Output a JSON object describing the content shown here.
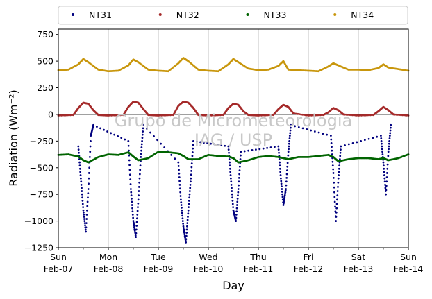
{
  "chart_data": {
    "type": "scatter",
    "title": "",
    "xlabel": "Day",
    "ylabel": "Radiation (Wm⁻²)",
    "ylim": [
      -1250,
      800
    ],
    "xlim": [
      0,
      7
    ],
    "yticks": [
      -1250,
      -1000,
      -750,
      -500,
      -250,
      0,
      250,
      500,
      750
    ],
    "ytick_labels": [
      "−1250",
      "−1000",
      "−750",
      "−500",
      "−250",
      "0",
      "250",
      "500",
      "750"
    ],
    "xticks": [
      {
        "pos": 0,
        "day": "Sun",
        "date": "Feb-07"
      },
      {
        "pos": 1,
        "day": "Mon",
        "date": "Feb-08"
      },
      {
        "pos": 2,
        "day": "Tue",
        "date": "Feb-09"
      },
      {
        "pos": 3,
        "day": "Wed",
        "date": "Feb-10"
      },
      {
        "pos": 4,
        "day": "Thu",
        "date": "Feb-11"
      },
      {
        "pos": 5,
        "day": "Fri",
        "date": "Feb-12"
      },
      {
        "pos": 6,
        "day": "Sat",
        "date": "Feb-13"
      },
      {
        "pos": 7,
        "day": "Sun",
        "date": "Feb-14"
      }
    ],
    "grid": "vertical",
    "legend_position": "top",
    "watermark": [
      "Grupo de Micrometeorologia",
      "IAG / USP"
    ],
    "series": [
      {
        "name": "NT31",
        "color": "#00007f",
        "x": [
          0.4,
          0.45,
          0.5,
          0.55,
          0.6,
          0.65,
          0.7,
          1.4,
          1.45,
          1.5,
          1.55,
          1.6,
          1.65,
          1.7,
          2.4,
          2.45,
          2.5,
          2.55,
          2.6,
          2.65,
          2.7,
          3.4,
          3.45,
          3.5,
          3.55,
          3.6,
          3.65,
          4.4,
          4.45,
          4.5,
          4.55,
          4.6,
          4.65,
          5.45,
          5.5,
          5.55,
          5.6,
          5.65,
          6.45,
          6.5,
          6.55,
          6.6,
          6.65
        ],
        "y": [
          -300,
          -600,
          -900,
          -1100,
          -700,
          -200,
          -100,
          -250,
          -700,
          -1000,
          -1150,
          -800,
          -400,
          -100,
          -450,
          -800,
          -1050,
          -1200,
          -900,
          -600,
          -250,
          -300,
          -600,
          -900,
          -1000,
          -700,
          -350,
          -300,
          -600,
          -850,
          -700,
          -350,
          -100,
          -200,
          -550,
          -1000,
          -600,
          -300,
          -200,
          -450,
          -750,
          -350,
          -100
        ]
      },
      {
        "name": "NT32",
        "color": "#a52a2a",
        "x": [
          0,
          0.3,
          0.4,
          0.5,
          0.6,
          0.7,
          0.8,
          1.0,
          1.3,
          1.4,
          1.5,
          1.6,
          1.7,
          1.8,
          2.0,
          2.3,
          2.4,
          2.5,
          2.6,
          2.7,
          2.8,
          3.0,
          3.3,
          3.4,
          3.5,
          3.6,
          3.7,
          3.8,
          4.0,
          4.3,
          4.4,
          4.5,
          4.6,
          4.7,
          5.0,
          5.3,
          5.4,
          5.5,
          5.6,
          5.7,
          6.0,
          6.3,
          6.4,
          6.5,
          6.6,
          6.7,
          7.0
        ],
        "y": [
          -10,
          -5,
          60,
          110,
          100,
          40,
          -5,
          -10,
          -5,
          70,
          120,
          110,
          50,
          -5,
          -10,
          -5,
          80,
          120,
          110,
          60,
          -5,
          -10,
          -5,
          60,
          100,
          90,
          30,
          -5,
          -10,
          -5,
          50,
          90,
          70,
          10,
          -10,
          -5,
          20,
          60,
          40,
          0,
          -10,
          -5,
          30,
          70,
          40,
          0,
          -10
        ]
      },
      {
        "name": "NT33",
        "color": "#006400",
        "x": [
          0,
          0.2,
          0.4,
          0.5,
          0.6,
          0.8,
          1.0,
          1.2,
          1.4,
          1.5,
          1.6,
          1.8,
          2.0,
          2.2,
          2.4,
          2.5,
          2.6,
          2.8,
          3.0,
          3.2,
          3.4,
          3.5,
          3.6,
          3.8,
          4.0,
          4.2,
          4.4,
          4.5,
          4.6,
          4.8,
          5.0,
          5.2,
          5.4,
          5.5,
          5.6,
          5.8,
          6.0,
          6.2,
          6.4,
          6.5,
          6.6,
          6.8,
          7.0
        ],
        "y": [
          -380,
          -375,
          -395,
          -430,
          -450,
          -400,
          -375,
          -380,
          -355,
          -395,
          -430,
          -410,
          -350,
          -355,
          -365,
          -390,
          -420,
          -420,
          -380,
          -390,
          -395,
          -410,
          -450,
          -430,
          -400,
          -390,
          -400,
          -410,
          -420,
          -400,
          -400,
          -390,
          -380,
          -400,
          -440,
          -420,
          -410,
          -410,
          -420,
          -410,
          -430,
          -410,
          -375
        ]
      },
      {
        "name": "NT34",
        "color": "#c8960c",
        "x": [
          0,
          0.2,
          0.4,
          0.5,
          0.6,
          0.8,
          1.0,
          1.2,
          1.4,
          1.5,
          1.6,
          1.8,
          2.0,
          2.2,
          2.4,
          2.5,
          2.6,
          2.8,
          3.0,
          3.2,
          3.4,
          3.5,
          3.6,
          3.8,
          4.0,
          4.2,
          4.4,
          4.5,
          4.6,
          4.8,
          5.0,
          5.2,
          5.4,
          5.5,
          5.6,
          5.8,
          6.0,
          6.2,
          6.4,
          6.5,
          6.6,
          6.8,
          7.0
        ],
        "y": [
          415,
          420,
          470,
          520,
          490,
          420,
          405,
          410,
          460,
          515,
          490,
          420,
          410,
          405,
          480,
          530,
          500,
          420,
          410,
          405,
          470,
          520,
          490,
          430,
          415,
          420,
          455,
          500,
          420,
          415,
          410,
          405,
          450,
          480,
          460,
          420,
          420,
          415,
          435,
          470,
          440,
          425,
          410
        ]
      }
    ]
  }
}
